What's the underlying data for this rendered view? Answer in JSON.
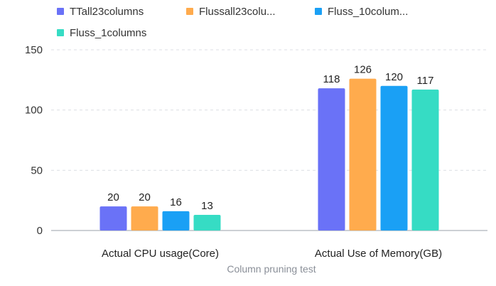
{
  "chart_data": {
    "type": "bar",
    "categories": [
      "Actual CPU usage(Core)",
      "Actual Use of Memory(GB)"
    ],
    "series": [
      {
        "name": "TTall23columns",
        "color": "#6a72f7",
        "values": [
          20,
          118
        ]
      },
      {
        "name": "Flussall23colu...",
        "color": "#ffab4d",
        "values": [
          20,
          126
        ]
      },
      {
        "name": "Fluss_10colum...",
        "color": "#1aa0f5",
        "values": [
          16,
          120
        ]
      },
      {
        "name": "Fluss_1columns",
        "color": "#36dcc4",
        "values": [
          13,
          117
        ]
      }
    ],
    "xlabel": "Column pruning test",
    "ylabel": "",
    "ylim": [
      0,
      150
    ],
    "yticks": [
      0,
      50,
      100,
      150
    ],
    "grid": true,
    "legend_position": "top-left"
  }
}
